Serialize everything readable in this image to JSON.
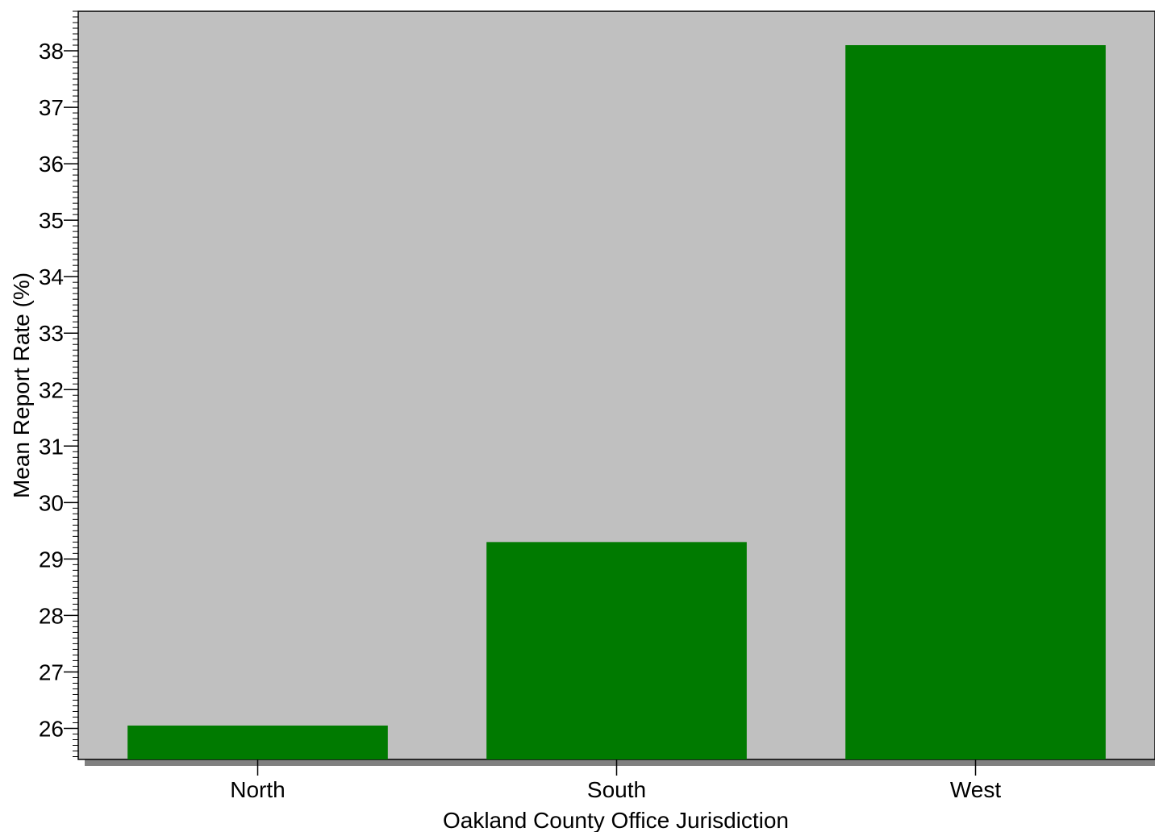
{
  "chart_data": {
    "type": "bar",
    "categories": [
      "North",
      "South",
      "West"
    ],
    "values": [
      26.05,
      29.3,
      38.1
    ],
    "xlabel": "Oakland County Office Jurisdiction",
    "ylabel": "Mean Report Rate (%)",
    "ylim": [
      25.45,
      38.7
    ],
    "yticks": [
      26,
      27,
      28,
      29,
      30,
      31,
      32,
      33,
      34,
      35,
      36,
      37,
      38
    ],
    "ytick_labels": [
      "26",
      "27",
      "28",
      "29",
      "30",
      "31",
      "32",
      "33",
      "34",
      "35",
      "36",
      "37",
      "38"
    ],
    "minor_ticks_per_major": 10,
    "grid": false,
    "legend": "none"
  },
  "colors": {
    "plot_background": "#c0c0c0",
    "bar_fill": "#007a00",
    "axis_shadow": "#808080",
    "page_background": "#ffffff"
  }
}
